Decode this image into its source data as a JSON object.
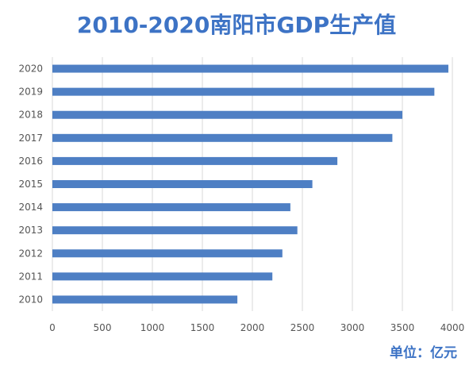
{
  "chart_data": {
    "type": "bar",
    "orientation": "horizontal",
    "title": "2010-2020南阳市GDP生产值",
    "unit_label": "单位：亿元",
    "categories": [
      "2010",
      "2011",
      "2012",
      "2013",
      "2014",
      "2015",
      "2016",
      "2017",
      "2018",
      "2019",
      "2020"
    ],
    "values": [
      1850,
      2200,
      2300,
      2450,
      2380,
      2600,
      2850,
      3400,
      3500,
      3820,
      3960
    ],
    "xlim": [
      0,
      4000
    ],
    "xticks": [
      "0",
      "500",
      "1000",
      "1500",
      "2000",
      "2500",
      "3000",
      "3500",
      "4000"
    ],
    "grid": true,
    "bar_color": "#4e7fc4",
    "title_color": "#3d73c5"
  }
}
